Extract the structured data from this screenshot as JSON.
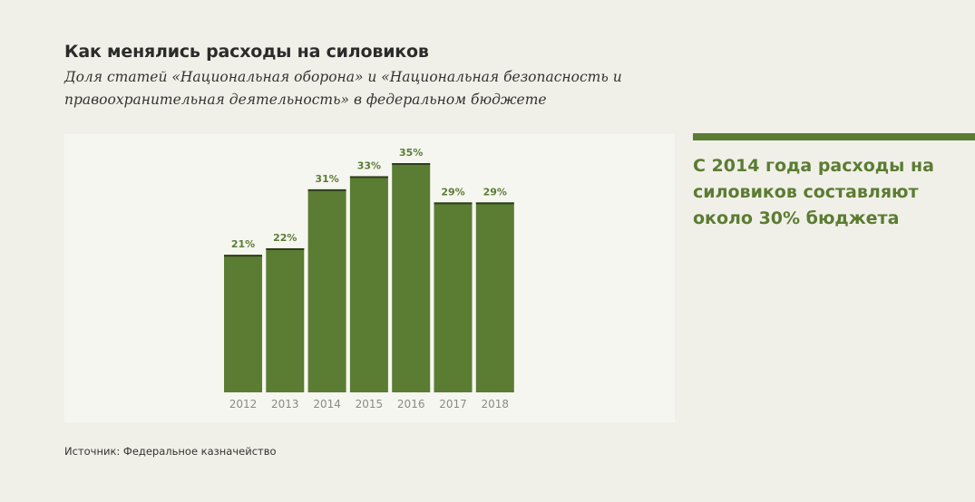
{
  "header": {
    "title": "Как менялись расходы на силовиков",
    "subtitle": "Доля статей «Национальная оборона» и «Национальная безопасность и правоохранительная деятельность» в федеральном бюджете"
  },
  "callout": {
    "text": "С 2014 года расходы на силовиков составляют около 30% бюджета"
  },
  "footer": {
    "source": "Источник: Федеральное казначейство"
  },
  "colors": {
    "accent": "#5b7c33",
    "bar_cap": "#2e3d1a",
    "tick_label": "#8a8a86",
    "background": "#f1f0e8",
    "panel": "#f6f6f1"
  },
  "chart_data": {
    "type": "bar",
    "title": "Как менялись расходы на силовиков",
    "xlabel": "",
    "ylabel": "",
    "categories": [
      "2012",
      "2013",
      "2014",
      "2015",
      "2016",
      "2017",
      "2018"
    ],
    "values": [
      21,
      22,
      31,
      33,
      35,
      29,
      29
    ],
    "value_labels": [
      "21%",
      "22%",
      "31%",
      "33%",
      "35%",
      "29%",
      "29%"
    ],
    "unit": "%",
    "ylim": [
      0,
      35
    ],
    "grid": false,
    "legend": "none"
  }
}
